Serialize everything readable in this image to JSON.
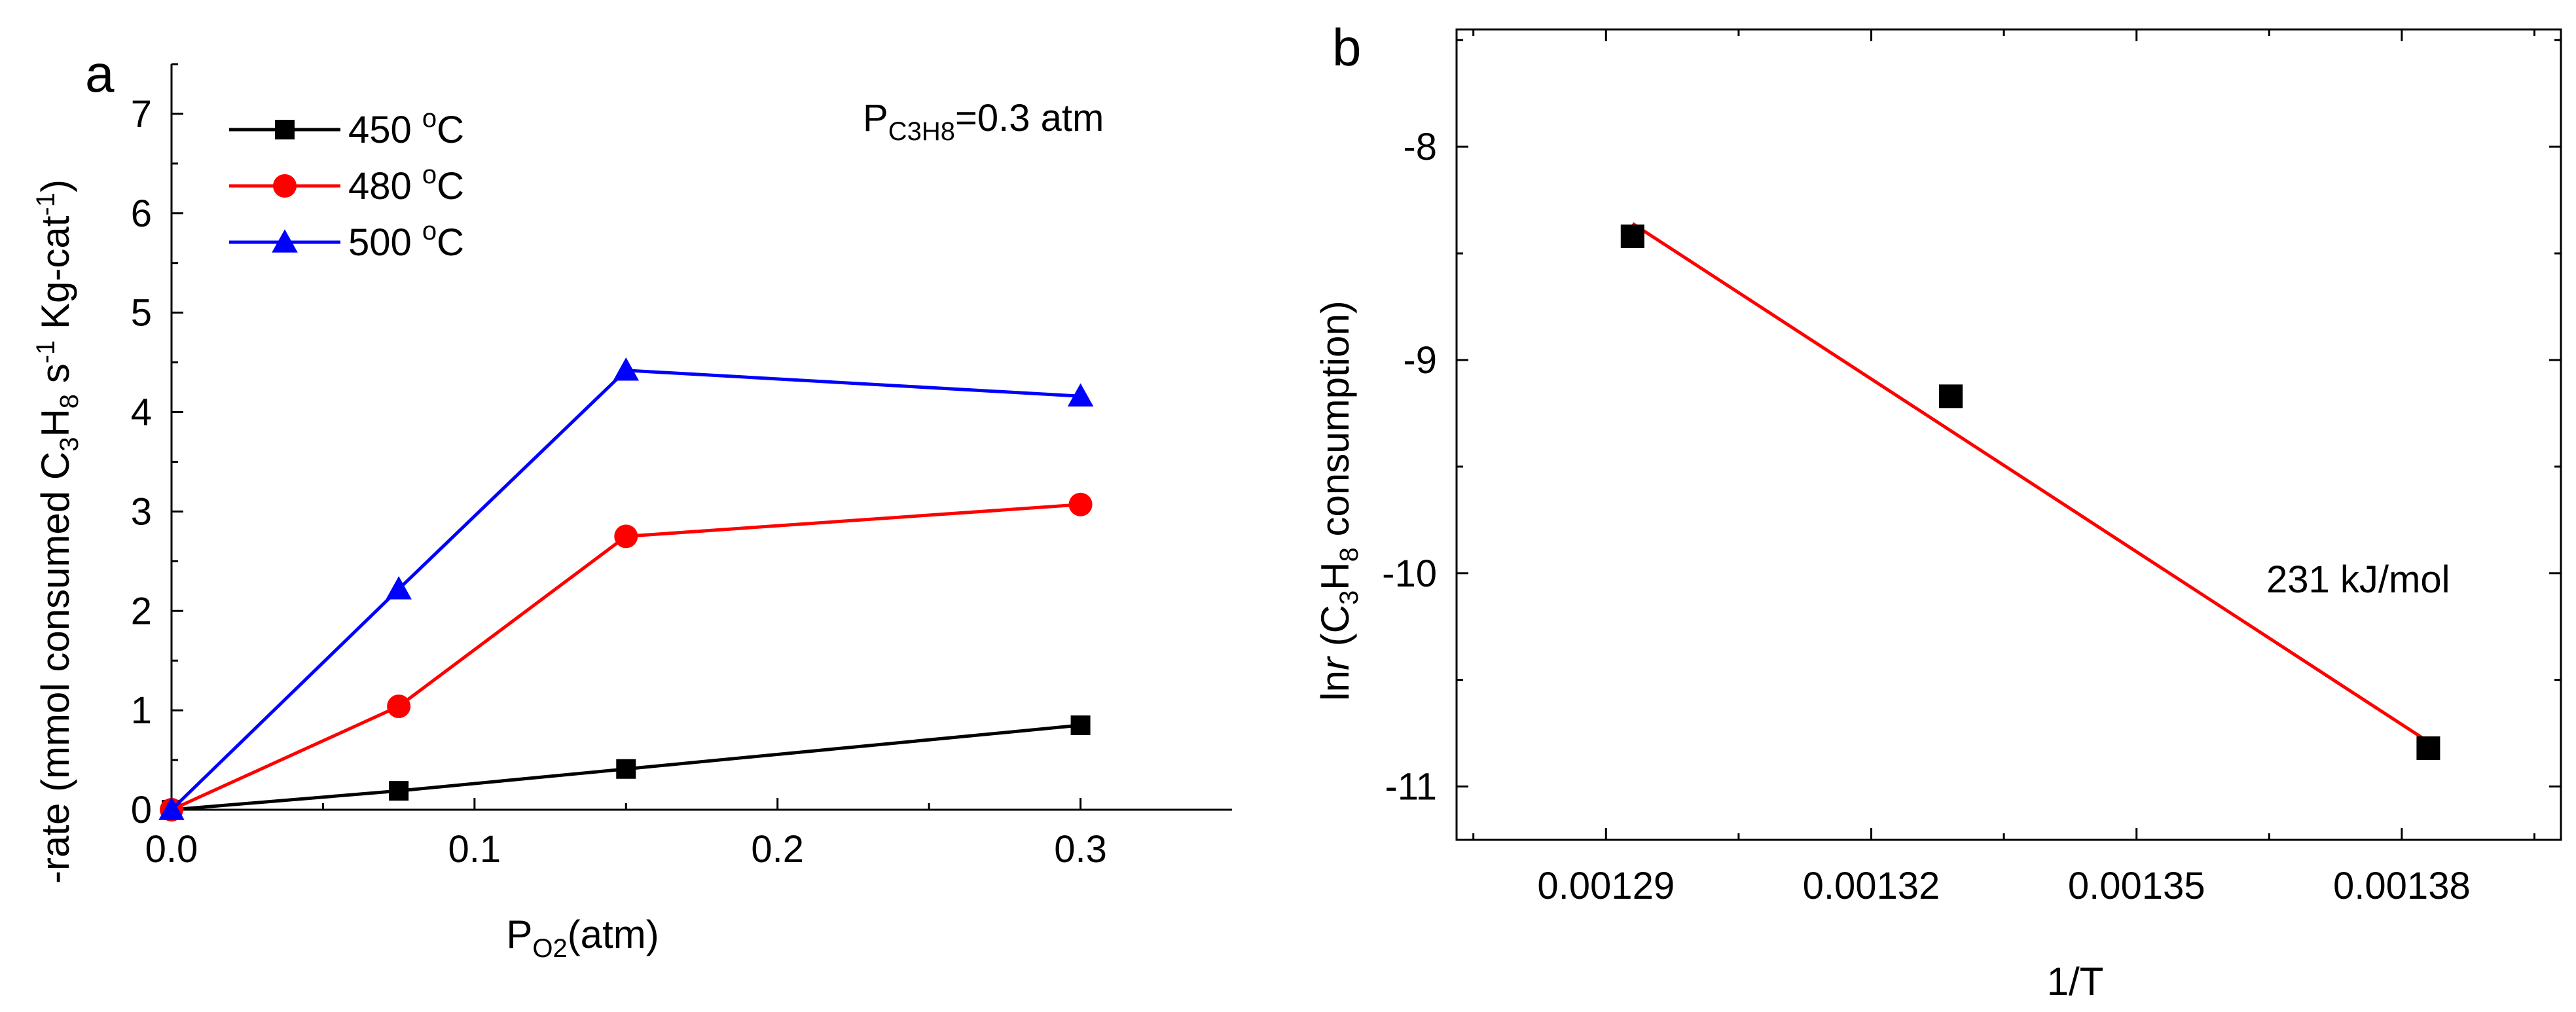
{
  "panels": {
    "a": {
      "letter": "a"
    },
    "b": {
      "letter": "b"
    }
  },
  "chart_data": [
    {
      "type": "line",
      "panel": "a",
      "xlabel_main": "P",
      "xlabel_sub": "O2",
      "xlabel_unit": "(atm)",
      "ylabel_parts": [
        "-rate (mmol consumed C",
        "3",
        "H",
        "8",
        " s",
        "-1",
        " Kg-cat",
        "-1",
        ")"
      ],
      "xlim": [
        0,
        0.35
      ],
      "ylim": [
        0,
        7.5
      ],
      "xticks": [
        0.0,
        0.1,
        0.2,
        0.3
      ],
      "xtick_labels": [
        "0.0",
        "0.1",
        "0.2",
        "0.3"
      ],
      "yticks": [
        0,
        1,
        2,
        3,
        4,
        5,
        6,
        7
      ],
      "ytick_labels": [
        "0",
        "1",
        "2",
        "3",
        "4",
        "5",
        "6",
        "7"
      ],
      "x": [
        0,
        0.075,
        0.15,
        0.3
      ],
      "series": [
        {
          "name": "450 °C",
          "name_parts": [
            "450 ",
            "o",
            "C"
          ],
          "marker": "square",
          "color": "#000000",
          "values": [
            0,
            0.19,
            0.41,
            0.85
          ]
        },
        {
          "name": "480 °C",
          "name_parts": [
            "480 ",
            "o",
            "C"
          ],
          "marker": "circle",
          "color": "#ff0000",
          "values": [
            0,
            1.04,
            2.75,
            3.07
          ]
        },
        {
          "name": "500 °C",
          "name_parts": [
            "500 ",
            "o",
            "C"
          ],
          "marker": "triangle",
          "color": "#0000ff",
          "values": [
            0,
            2.22,
            4.42,
            4.16
          ]
        }
      ],
      "annotation": {
        "main": "P",
        "sub": "C3H8",
        "rest": "=0.3 atm"
      },
      "legend_position": "top-left"
    },
    {
      "type": "scatter",
      "panel": "b",
      "xlabel": "1/T",
      "ylabel_parts": [
        "ln",
        "r",
        " (C",
        "3",
        "H",
        "8",
        " consumption)"
      ],
      "xlim": [
        0.0012731,
        0.001398
      ],
      "ylim": [
        -11.25,
        -7.45
      ],
      "xticks": [
        0.00129,
        0.00132,
        0.00135,
        0.00138
      ],
      "xtick_labels": [
        "0.00129",
        "0.00132",
        "0.00135",
        "0.00138"
      ],
      "yticks": [
        -11,
        -10,
        -9,
        -8
      ],
      "ytick_labels": [
        "-11",
        "-10",
        "-9",
        "-8"
      ],
      "points": {
        "x": [
          0.001293,
          0.001329,
          0.001383
        ],
        "y": [
          -8.42,
          -9.17,
          -10.82
        ]
      },
      "fit_line": {
        "color": "#ff0000",
        "x": [
          0.001293,
          0.001383
        ],
        "y": [
          -8.36,
          -10.79
        ]
      },
      "marker_color": "#000000",
      "annotation": "231 kJ/mol"
    }
  ]
}
